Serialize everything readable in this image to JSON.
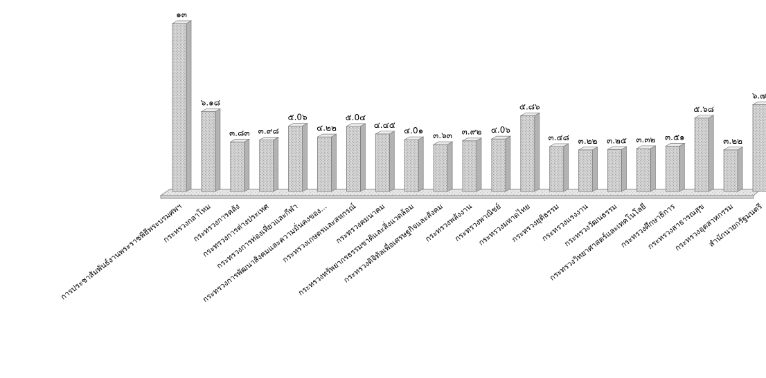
{
  "chart_data": {
    "type": "bar",
    "title": "",
    "xlabel": "",
    "ylabel": "",
    "ylim": [
      0,
      13
    ],
    "grid": false,
    "legend": "none",
    "categories": [
      "การประชาสัมพันธ์งานพระราชพิธีพระบรมศพฯ",
      "กระทรวงกลาโหม",
      "กระทรวงการคลัง",
      "กระทรวงการต่างประเทศ",
      "กระทรวงการท่องเที่ยวและกีฬา",
      "กระทรวงการพัฒนาสังคมและความมั่นคงของ...",
      "กระทรวงเกษตรและสหกรณ์",
      "กระทรวงคมนาคม",
      "กระทรวงทรัพยากรธรรมชาติและสิ่งแวดล้อม",
      "กระทรวงดิจิทัลเพื่อเศรษฐกิจและสังคม",
      "กระทรวงพลังงาน",
      "กระทรวงพาณิชย์",
      "กระทรวงมหาดไทย",
      "กระทรวงยุติธรรม",
      "กระทรวงแรงงาน",
      "กระทรวงวัฒนธรรม",
      "กระทรวงวิทยาศาสตร์และเทคโนโลยี",
      "กระทรวงศึกษาธิการ",
      "กระทรวงสาธารณสุข",
      "กระทรวงอุตสาหกรรม",
      "สำนักนายกรัฐมนตรี"
    ],
    "values": [
      13,
      6.18,
      3.83,
      3.98,
      5.06,
      4.22,
      5.04,
      4.45,
      4.01,
      3.63,
      3.92,
      4.06,
      5.86,
      3.48,
      3.22,
      3.25,
      3.32,
      3.51,
      5.68,
      3.22,
      6.72
    ],
    "value_labels": [
      "๑๓",
      "๖.๑๘",
      "๓.๘๓",
      "๓.๙๘",
      "๕.0๖",
      "๔.๒๒",
      "๕.0๔",
      "๔.๔๕",
      "๔.0๑",
      "๓.๖๓",
      "๓.๙๒",
      "๔.0๖",
      "๕.๘๖",
      "๓.๔๘",
      "๓.๒๒",
      "๓.๒๕",
      "๓.๓๒",
      "๓.๕๑",
      "๕.๖๘",
      "๓.๒๒",
      "๖.๗๒"
    ],
    "colors": {
      "bar_fill": "#c9c9c9",
      "bar_top": "#ececec",
      "bar_edge": "#7a7a7a",
      "floor": "#e3e3e3",
      "floor_edge": "#8a8a8a"
    }
  }
}
